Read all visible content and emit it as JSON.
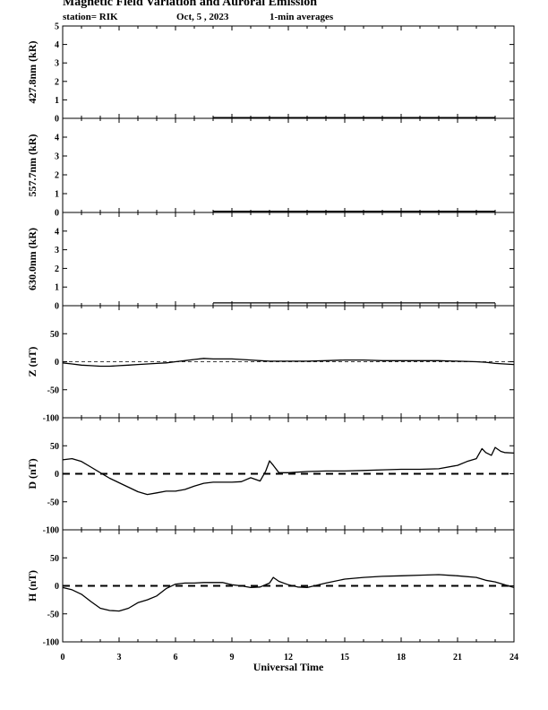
{
  "header": {
    "title": "Magnetic Field Variation and Auroral Emission",
    "station": "station= RIK",
    "date": "Oct, 5  , 2023",
    "averaging": "1-min averages"
  },
  "chart_data": {
    "type": "line",
    "xlabel": "Universal Time",
    "xlim": [
      0,
      24
    ],
    "xticks": [
      0,
      3,
      6,
      9,
      12,
      15,
      18,
      21,
      24
    ],
    "panels": [
      {
        "id": "p4278",
        "ylabel": "427.8nm (kR)",
        "ylim": [
          0,
          5
        ],
        "yticks": [
          0,
          1,
          2,
          3,
          4,
          5
        ],
        "zero_line": "none",
        "series": [
          {
            "x": [
              8.0,
              23.0
            ],
            "y": [
              0.04,
              0.04
            ]
          }
        ]
      },
      {
        "id": "p5577",
        "ylabel": "557.7nm (kR)",
        "ylim": [
          0,
          5
        ],
        "yticks": [
          0,
          1,
          2,
          3,
          4
        ],
        "zero_line": "none",
        "series": [
          {
            "x": [
              8.0,
              23.0
            ],
            "y": [
              0.06,
              0.06
            ]
          }
        ]
      },
      {
        "id": "p6300",
        "ylabel": "630.0nm (kR)",
        "ylim": [
          0,
          5
        ],
        "yticks": [
          0,
          1,
          2,
          3,
          4
        ],
        "zero_line": "none",
        "series": [
          {
            "x": [
              8.0,
              23.0
            ],
            "y": [
              0.15,
              0.15
            ]
          }
        ]
      },
      {
        "id": "pZ",
        "ylabel": "Z (nT)",
        "ylim": [
          -100,
          100
        ],
        "yticks": [
          -100,
          -50,
          0,
          50
        ],
        "zero_line": "thin-dashed",
        "series": [
          {
            "x": [
              0,
              0.5,
              1,
              1.5,
              2,
              2.5,
              3,
              3.5,
              4,
              4.5,
              5,
              5.5,
              6,
              6.5,
              7,
              7.5,
              8,
              8.5,
              9,
              9.5,
              10,
              10.5,
              11,
              11.5,
              12,
              13,
              14,
              15,
              16,
              17,
              18,
              19,
              20,
              21,
              22,
              22.5,
              23,
              23.5,
              24
            ],
            "y": [
              -2,
              -4,
              -6,
              -7,
              -8,
              -8,
              -7,
              -6,
              -5,
              -4,
              -3,
              -2,
              0,
              2,
              4,
              6,
              5,
              5,
              5,
              4,
              3,
              2,
              1,
              1,
              1,
              1,
              2,
              3,
              3,
              2,
              2,
              2,
              2,
              1,
              0,
              -1,
              -3,
              -4,
              -5
            ]
          }
        ]
      },
      {
        "id": "pD",
        "ylabel": "D (nT)",
        "ylim": [
          -100,
          100
        ],
        "yticks": [
          -100,
          -50,
          0,
          50
        ],
        "zero_line": "thick-dashed",
        "series": [
          {
            "x": [
              0,
              0.5,
              1,
              1.5,
              2,
              2.5,
              3,
              3.5,
              4,
              4.5,
              5,
              5.5,
              6,
              6.5,
              7,
              7.5,
              8,
              8.5,
              9,
              9.5,
              10,
              10.5,
              10.8,
              11,
              11.2,
              11.5,
              12,
              13,
              14,
              15,
              16,
              17,
              18,
              19,
              20,
              21,
              21.5,
              22,
              22.3,
              22.5,
              22.8,
              23,
              23.3,
              23.5,
              24
            ],
            "y": [
              25,
              27,
              22,
              12,
              2,
              -8,
              -16,
              -24,
              -32,
              -37,
              -34,
              -31,
              -31,
              -28,
              -22,
              -17,
              -15,
              -15,
              -15,
              -14,
              -7,
              -13,
              5,
              23,
              15,
              2,
              2,
              4,
              5,
              5,
              6,
              7,
              8,
              8,
              9,
              15,
              22,
              27,
              45,
              38,
              33,
              47,
              40,
              38,
              37
            ]
          }
        ]
      },
      {
        "id": "pH",
        "ylabel": "H (nT)",
        "ylim": [
          -100,
          100
        ],
        "yticks": [
          -100,
          -50,
          0,
          50
        ],
        "zero_line": "thick-dashed",
        "series": [
          {
            "x": [
              0,
              0.5,
              1,
              1.5,
              2,
              2.5,
              3,
              3.5,
              4,
              4.5,
              5,
              5.5,
              6,
              6.5,
              7,
              7.5,
              8,
              8.5,
              9,
              9.5,
              10,
              10.5,
              11,
              11.2,
              11.5,
              12,
              12.5,
              13,
              14,
              15,
              16,
              17,
              18,
              19,
              20,
              21,
              22,
              22.5,
              23,
              23.5,
              24
            ],
            "y": [
              -3,
              -7,
              -15,
              -28,
              -40,
              -44,
              -45,
              -40,
              -30,
              -25,
              -18,
              -5,
              3,
              5,
              5,
              6,
              6,
              6,
              2,
              0,
              -3,
              -2,
              5,
              15,
              8,
              2,
              -2,
              -3,
              5,
              12,
              15,
              17,
              18,
              19,
              20,
              18,
              15,
              10,
              7,
              2,
              -3
            ]
          }
        ]
      }
    ]
  }
}
